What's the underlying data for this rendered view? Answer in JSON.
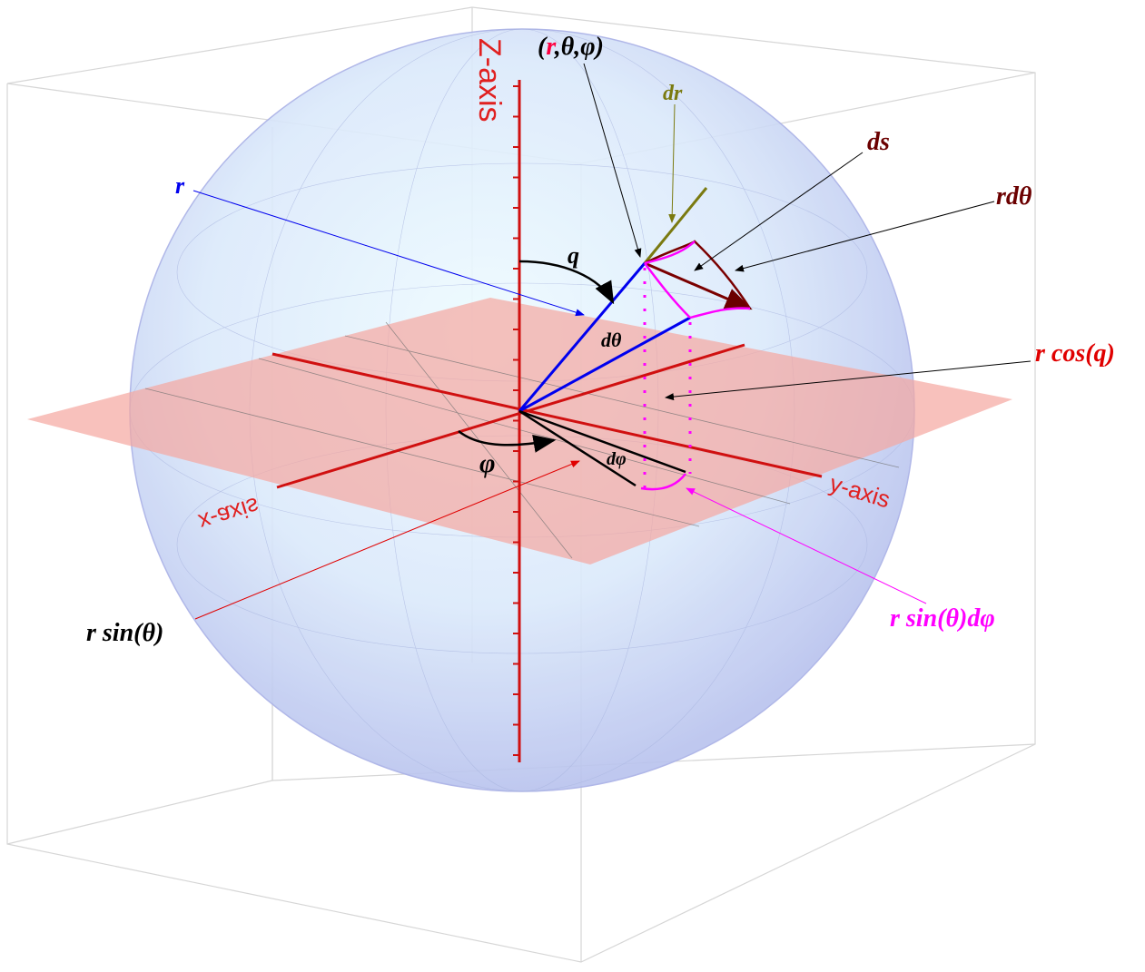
{
  "axes": {
    "z": "Z-axis",
    "x": "x-axis",
    "y": "y-axis"
  },
  "labels": {
    "point": [
      "(",
      "r",
      ",θ,φ)"
    ],
    "dr": "dr",
    "ds": "ds",
    "r_dtheta": "rdθ",
    "r": "r",
    "theta": "q",
    "dtheta": "dθ",
    "r_cos": "r cos(q)",
    "phi": "φ",
    "dphi": "dφ",
    "r_sin": "r sin(θ)",
    "r_sin_dphi": "r sin(θ)dφ"
  }
}
